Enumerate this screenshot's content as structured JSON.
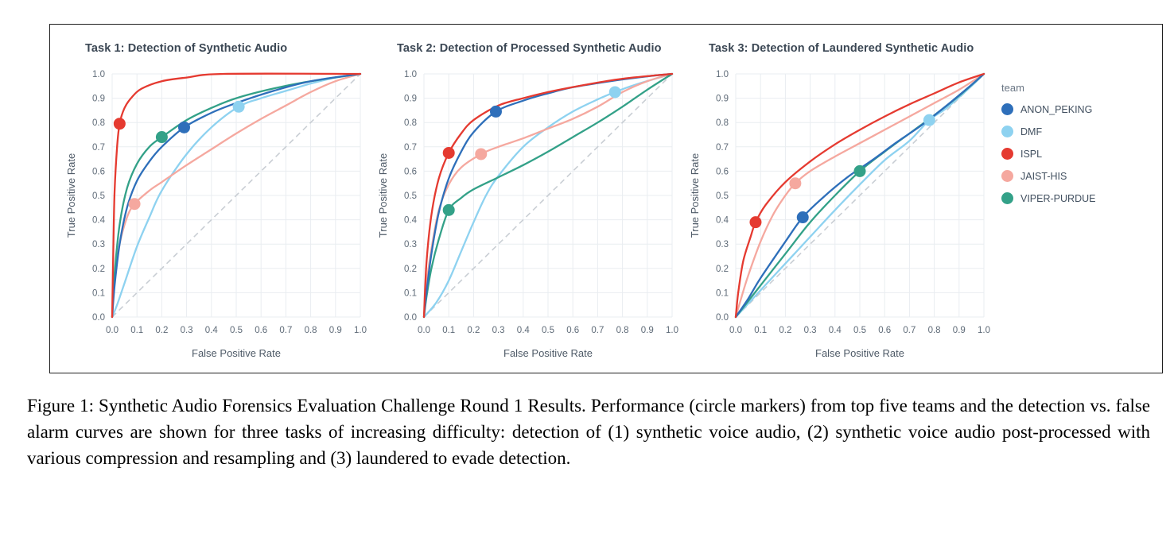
{
  "figure": {
    "caption": "Figure 1: Synthetic Audio Forensics Evaluation Challenge Round 1 Results. Performance (circle markers) from top five teams and the detection vs. false alarm curves are shown for three tasks of increasing difficulty: detection of (1) synthetic voice audio, (2) synthetic voice audio post-processed with various compression and resampling and (3) laundered to evade detection."
  },
  "legend": {
    "title": "team",
    "entries": [
      {
        "label": "ANON_PEKING",
        "color": "#2e6fba"
      },
      {
        "label": "DMF",
        "color": "#8ed2f0"
      },
      {
        "label": "ISPL",
        "color": "#e53a30"
      },
      {
        "label": "JAIST-HIS",
        "color": "#f5a89f"
      },
      {
        "label": "VIPER-PURDUE",
        "color": "#33a188"
      }
    ]
  },
  "axes": {
    "ticks": [
      "0.0",
      "0.1",
      "0.2",
      "0.3",
      "0.4",
      "0.5",
      "0.6",
      "0.7",
      "0.8",
      "0.9",
      "1.0"
    ],
    "xlabel": "False Positive Rate",
    "ylabel": "True Positive Rate"
  },
  "chart_data": [
    {
      "type": "line",
      "title": "Task 1: Detection of Synthetic Audio",
      "xlabel": "False Positive Rate",
      "ylabel": "True Positive Rate",
      "xlim": [
        0,
        1
      ],
      "ylim": [
        0,
        1
      ],
      "grid": true,
      "diagonal_reference": true,
      "legend_position": "right-of-figure",
      "series": [
        {
          "name": "DMF",
          "marker": [
            0.51,
            0.865
          ],
          "points": [
            [
              0,
              0
            ],
            [
              0.02,
              0.05
            ],
            [
              0.05,
              0.14
            ],
            [
              0.1,
              0.29
            ],
            [
              0.15,
              0.41
            ],
            [
              0.2,
              0.52
            ],
            [
              0.3,
              0.67
            ],
            [
              0.4,
              0.78
            ],
            [
              0.51,
              0.865
            ],
            [
              0.6,
              0.9
            ],
            [
              0.7,
              0.93
            ],
            [
              0.8,
              0.96
            ],
            [
              0.9,
              0.985
            ],
            [
              1,
              1
            ]
          ]
        },
        {
          "name": "JAIST-HIS",
          "marker": [
            0.09,
            0.465
          ],
          "points": [
            [
              0,
              0
            ],
            [
              0.01,
              0.16
            ],
            [
              0.03,
              0.3
            ],
            [
              0.06,
              0.41
            ],
            [
              0.09,
              0.465
            ],
            [
              0.15,
              0.52
            ],
            [
              0.2,
              0.555
            ],
            [
              0.3,
              0.625
            ],
            [
              0.4,
              0.69
            ],
            [
              0.5,
              0.755
            ],
            [
              0.6,
              0.815
            ],
            [
              0.7,
              0.87
            ],
            [
              0.8,
              0.925
            ],
            [
              0.9,
              0.97
            ],
            [
              1,
              1
            ]
          ]
        },
        {
          "name": "VIPER-PURDUE",
          "marker": [
            0.2,
            0.74
          ],
          "points": [
            [
              0,
              0
            ],
            [
              0.01,
              0.18
            ],
            [
              0.03,
              0.38
            ],
            [
              0.06,
              0.53
            ],
            [
              0.1,
              0.63
            ],
            [
              0.15,
              0.7
            ],
            [
              0.2,
              0.74
            ],
            [
              0.3,
              0.81
            ],
            [
              0.4,
              0.86
            ],
            [
              0.5,
              0.9
            ],
            [
              0.65,
              0.94
            ],
            [
              0.8,
              0.97
            ],
            [
              1,
              1
            ]
          ]
        },
        {
          "name": "ANON_PEKING",
          "marker": [
            0.29,
            0.78
          ],
          "points": [
            [
              0,
              0
            ],
            [
              0.01,
              0.13
            ],
            [
              0.03,
              0.3
            ],
            [
              0.06,
              0.45
            ],
            [
              0.1,
              0.56
            ],
            [
              0.15,
              0.64
            ],
            [
              0.2,
              0.7
            ],
            [
              0.29,
              0.78
            ],
            [
              0.4,
              0.84
            ],
            [
              0.5,
              0.88
            ],
            [
              0.65,
              0.93
            ],
            [
              0.8,
              0.97
            ],
            [
              1,
              1
            ]
          ]
        },
        {
          "name": "ISPL",
          "marker": [
            0.03,
            0.795
          ],
          "points": [
            [
              0,
              0
            ],
            [
              0.005,
              0.3
            ],
            [
              0.01,
              0.52
            ],
            [
              0.02,
              0.7
            ],
            [
              0.03,
              0.795
            ],
            [
              0.05,
              0.86
            ],
            [
              0.08,
              0.905
            ],
            [
              0.12,
              0.94
            ],
            [
              0.2,
              0.97
            ],
            [
              0.3,
              0.985
            ],
            [
              0.45,
              1.0
            ],
            [
              1,
              1
            ]
          ]
        }
      ]
    },
    {
      "type": "line",
      "title": "Task 2: Detection of Processed Synthetic Audio",
      "xlabel": "False Positive Rate",
      "ylabel": "True Positive Rate",
      "xlim": [
        0,
        1
      ],
      "ylim": [
        0,
        1
      ],
      "grid": true,
      "diagonal_reference": true,
      "series": [
        {
          "name": "DMF",
          "marker": [
            0.77,
            0.925
          ],
          "points": [
            [
              0,
              0
            ],
            [
              0.05,
              0.06
            ],
            [
              0.1,
              0.15
            ],
            [
              0.15,
              0.27
            ],
            [
              0.2,
              0.39
            ],
            [
              0.25,
              0.5
            ],
            [
              0.3,
              0.58
            ],
            [
              0.4,
              0.7
            ],
            [
              0.5,
              0.78
            ],
            [
              0.6,
              0.845
            ],
            [
              0.7,
              0.895
            ],
            [
              0.77,
              0.925
            ],
            [
              0.85,
              0.955
            ],
            [
              1,
              1
            ]
          ]
        },
        {
          "name": "JAIST-HIS",
          "marker": [
            0.23,
            0.67
          ],
          "points": [
            [
              0,
              0
            ],
            [
              0.01,
              0.13
            ],
            [
              0.03,
              0.28
            ],
            [
              0.06,
              0.44
            ],
            [
              0.1,
              0.545
            ],
            [
              0.15,
              0.615
            ],
            [
              0.23,
              0.67
            ],
            [
              0.3,
              0.7
            ],
            [
              0.4,
              0.735
            ],
            [
              0.5,
              0.775
            ],
            [
              0.6,
              0.815
            ],
            [
              0.7,
              0.865
            ],
            [
              0.8,
              0.925
            ],
            [
              0.9,
              0.97
            ],
            [
              1,
              1
            ]
          ]
        },
        {
          "name": "VIPER-PURDUE",
          "marker": [
            0.1,
            0.44
          ],
          "points": [
            [
              0,
              0
            ],
            [
              0.01,
              0.08
            ],
            [
              0.03,
              0.2
            ],
            [
              0.06,
              0.32
            ],
            [
              0.1,
              0.44
            ],
            [
              0.15,
              0.49
            ],
            [
              0.2,
              0.525
            ],
            [
              0.3,
              0.575
            ],
            [
              0.4,
              0.625
            ],
            [
              0.5,
              0.68
            ],
            [
              0.6,
              0.74
            ],
            [
              0.7,
              0.8
            ],
            [
              0.8,
              0.865
            ],
            [
              0.9,
              0.935
            ],
            [
              1,
              1
            ]
          ]
        },
        {
          "name": "ANON_PEKING",
          "marker": [
            0.29,
            0.845
          ],
          "points": [
            [
              0,
              0
            ],
            [
              0.01,
              0.1
            ],
            [
              0.03,
              0.26
            ],
            [
              0.06,
              0.43
            ],
            [
              0.1,
              0.57
            ],
            [
              0.15,
              0.68
            ],
            [
              0.2,
              0.76
            ],
            [
              0.29,
              0.845
            ],
            [
              0.4,
              0.89
            ],
            [
              0.5,
              0.92
            ],
            [
              0.6,
              0.945
            ],
            [
              0.75,
              0.97
            ],
            [
              0.9,
              0.99
            ],
            [
              1,
              1
            ]
          ]
        },
        {
          "name": "ISPL",
          "marker": [
            0.1,
            0.675
          ],
          "points": [
            [
              0,
              0
            ],
            [
              0.01,
              0.22
            ],
            [
              0.03,
              0.42
            ],
            [
              0.06,
              0.57
            ],
            [
              0.1,
              0.675
            ],
            [
              0.15,
              0.755
            ],
            [
              0.2,
              0.81
            ],
            [
              0.3,
              0.87
            ],
            [
              0.4,
              0.9
            ],
            [
              0.5,
              0.925
            ],
            [
              0.65,
              0.955
            ],
            [
              0.8,
              0.98
            ],
            [
              1,
              1
            ]
          ]
        }
      ]
    },
    {
      "type": "line",
      "title": "Task 3: Detection of Laundered Synthetic Audio",
      "xlabel": "False Positive Rate",
      "ylabel": "True Positive Rate",
      "xlim": [
        0,
        1
      ],
      "ylim": [
        0,
        1
      ],
      "grid": true,
      "diagonal_reference": true,
      "series": [
        {
          "name": "DMF",
          "marker": [
            0.78,
            0.81
          ],
          "points": [
            [
              0,
              0
            ],
            [
              0.05,
              0.055
            ],
            [
              0.1,
              0.11
            ],
            [
              0.2,
              0.22
            ],
            [
              0.3,
              0.33
            ],
            [
              0.4,
              0.44
            ],
            [
              0.5,
              0.545
            ],
            [
              0.6,
              0.645
            ],
            [
              0.7,
              0.725
            ],
            [
              0.78,
              0.81
            ],
            [
              0.85,
              0.86
            ],
            [
              0.95,
              0.95
            ],
            [
              1,
              1
            ]
          ]
        },
        {
          "name": "JAIST-HIS",
          "marker": [
            0.24,
            0.55
          ],
          "points": [
            [
              0,
              0
            ],
            [
              0.02,
              0.07
            ],
            [
              0.05,
              0.17
            ],
            [
              0.1,
              0.31
            ],
            [
              0.15,
              0.42
            ],
            [
              0.2,
              0.5
            ],
            [
              0.24,
              0.55
            ],
            [
              0.3,
              0.6
            ],
            [
              0.4,
              0.66
            ],
            [
              0.5,
              0.715
            ],
            [
              0.6,
              0.77
            ],
            [
              0.7,
              0.825
            ],
            [
              0.8,
              0.88
            ],
            [
              0.9,
              0.935
            ],
            [
              1,
              1
            ]
          ]
        },
        {
          "name": "VIPER-PURDUE",
          "marker": [
            0.5,
            0.6
          ],
          "points": [
            [
              0,
              0
            ],
            [
              0.05,
              0.065
            ],
            [
              0.1,
              0.13
            ],
            [
              0.2,
              0.26
            ],
            [
              0.3,
              0.39
            ],
            [
              0.4,
              0.5
            ],
            [
              0.5,
              0.6
            ],
            [
              0.6,
              0.68
            ],
            [
              0.7,
              0.755
            ],
            [
              0.8,
              0.83
            ],
            [
              0.9,
              0.91
            ],
            [
              1,
              1
            ]
          ]
        },
        {
          "name": "ANON_PEKING",
          "marker": [
            0.27,
            0.41
          ],
          "points": [
            [
              0,
              0
            ],
            [
              0.05,
              0.075
            ],
            [
              0.1,
              0.16
            ],
            [
              0.2,
              0.31
            ],
            [
              0.27,
              0.41
            ],
            [
              0.35,
              0.49
            ],
            [
              0.45,
              0.575
            ],
            [
              0.55,
              0.645
            ],
            [
              0.65,
              0.72
            ],
            [
              0.75,
              0.79
            ],
            [
              0.85,
              0.87
            ],
            [
              0.95,
              0.955
            ],
            [
              1,
              1
            ]
          ]
        },
        {
          "name": "ISPL",
          "marker": [
            0.08,
            0.39
          ],
          "points": [
            [
              0,
              0
            ],
            [
              0.01,
              0.1
            ],
            [
              0.03,
              0.23
            ],
            [
              0.06,
              0.33
            ],
            [
              0.08,
              0.39
            ],
            [
              0.12,
              0.46
            ],
            [
              0.2,
              0.555
            ],
            [
              0.3,
              0.64
            ],
            [
              0.4,
              0.71
            ],
            [
              0.5,
              0.77
            ],
            [
              0.6,
              0.825
            ],
            [
              0.7,
              0.875
            ],
            [
              0.8,
              0.92
            ],
            [
              0.9,
              0.965
            ],
            [
              1,
              1
            ]
          ]
        }
      ]
    }
  ]
}
